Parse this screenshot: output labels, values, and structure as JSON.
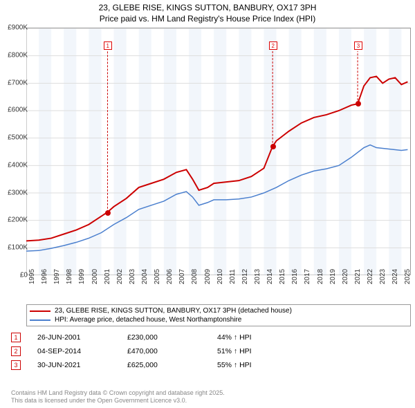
{
  "title_line1": "23, GLEBE RISE, KINGS SUTTON, BANBURY, OX17 3PH",
  "title_line2": "Price paid vs. HM Land Registry's House Price Index (HPI)",
  "chart": {
    "type": "line",
    "xlim": [
      1995,
      2025.7
    ],
    "ylim": [
      0,
      900
    ],
    "y_ticks": [
      0,
      100,
      200,
      300,
      400,
      500,
      600,
      700,
      800,
      900
    ],
    "y_tick_labels": [
      "£0",
      "£100K",
      "£200K",
      "£300K",
      "£400K",
      "£500K",
      "£600K",
      "£700K",
      "£800K",
      "£900K"
    ],
    "x_ticks": [
      1995,
      1996,
      1997,
      1998,
      1999,
      2000,
      2001,
      2002,
      2003,
      2004,
      2005,
      2006,
      2007,
      2008,
      2009,
      2010,
      2011,
      2012,
      2013,
      2014,
      2015,
      2016,
      2017,
      2018,
      2019,
      2020,
      2021,
      2022,
      2023,
      2024,
      2025
    ],
    "grid_color": "#dddddd",
    "band_color": "#f2f6fb",
    "background": "#ffffff",
    "series": [
      {
        "name": "23, GLEBE RISE, KINGS SUTTON, BANBURY, OX17 3PH (detached house)",
        "color": "#cc0000",
        "width": 2,
        "points": [
          [
            1995,
            125
          ],
          [
            1996,
            128
          ],
          [
            1997,
            135
          ],
          [
            1998,
            150
          ],
          [
            1999,
            165
          ],
          [
            2000,
            185
          ],
          [
            2001,
            215
          ],
          [
            2001.5,
            230
          ],
          [
            2002,
            250
          ],
          [
            2003,
            280
          ],
          [
            2004,
            320
          ],
          [
            2005,
            335
          ],
          [
            2006,
            350
          ],
          [
            2007,
            375
          ],
          [
            2007.8,
            385
          ],
          [
            2008.3,
            350
          ],
          [
            2008.8,
            310
          ],
          [
            2009.5,
            320
          ],
          [
            2010,
            335
          ],
          [
            2011,
            340
          ],
          [
            2012,
            345
          ],
          [
            2013,
            360
          ],
          [
            2014,
            390
          ],
          [
            2014.7,
            470
          ],
          [
            2015,
            490
          ],
          [
            2016,
            525
          ],
          [
            2017,
            555
          ],
          [
            2018,
            575
          ],
          [
            2019,
            585
          ],
          [
            2020,
            600
          ],
          [
            2021,
            620
          ],
          [
            2021.5,
            625
          ],
          [
            2022,
            690
          ],
          [
            2022.5,
            720
          ],
          [
            2023,
            725
          ],
          [
            2023.5,
            700
          ],
          [
            2024,
            715
          ],
          [
            2024.5,
            720
          ],
          [
            2025,
            695
          ],
          [
            2025.5,
            705
          ]
        ]
      },
      {
        "name": "HPI: Average price, detached house, West Northamptonshire",
        "color": "#4a7fce",
        "width": 1.5,
        "points": [
          [
            1995,
            88
          ],
          [
            1996,
            90
          ],
          [
            1997,
            98
          ],
          [
            1998,
            108
          ],
          [
            1999,
            120
          ],
          [
            2000,
            135
          ],
          [
            2001,
            155
          ],
          [
            2002,
            185
          ],
          [
            2003,
            210
          ],
          [
            2004,
            240
          ],
          [
            2005,
            255
          ],
          [
            2006,
            270
          ],
          [
            2007,
            295
          ],
          [
            2007.8,
            305
          ],
          [
            2008.3,
            285
          ],
          [
            2008.8,
            255
          ],
          [
            2009.5,
            265
          ],
          [
            2010,
            275
          ],
          [
            2011,
            275
          ],
          [
            2012,
            278
          ],
          [
            2013,
            285
          ],
          [
            2014,
            300
          ],
          [
            2015,
            320
          ],
          [
            2016,
            345
          ],
          [
            2017,
            365
          ],
          [
            2018,
            380
          ],
          [
            2019,
            388
          ],
          [
            2020,
            400
          ],
          [
            2021,
            430
          ],
          [
            2022,
            465
          ],
          [
            2022.5,
            475
          ],
          [
            2023,
            465
          ],
          [
            2024,
            460
          ],
          [
            2025,
            455
          ],
          [
            2025.5,
            458
          ]
        ]
      }
    ],
    "markers": [
      {
        "n": "1",
        "x": 2001.5,
        "y": 230,
        "label_y": 25,
        "color": "#cc0000"
      },
      {
        "n": "2",
        "x": 2014.7,
        "y": 470,
        "label_y": 25,
        "color": "#cc0000"
      },
      {
        "n": "3",
        "x": 2021.5,
        "y": 625,
        "label_y": 25,
        "color": "#cc0000"
      }
    ]
  },
  "legend": [
    {
      "color": "#cc0000",
      "label": "23, GLEBE RISE, KINGS SUTTON, BANBURY, OX17 3PH (detached house)"
    },
    {
      "color": "#4a7fce",
      "label": "HPI: Average price, detached house, West Northamptonshire"
    }
  ],
  "transactions": [
    {
      "n": "1",
      "date": "26-JUN-2001",
      "price": "£230,000",
      "pct": "44% ↑ HPI",
      "color": "#cc0000"
    },
    {
      "n": "2",
      "date": "04-SEP-2014",
      "price": "£470,000",
      "pct": "51% ↑ HPI",
      "color": "#cc0000"
    },
    {
      "n": "3",
      "date": "30-JUN-2021",
      "price": "£625,000",
      "pct": "55% ↑ HPI",
      "color": "#cc0000"
    }
  ],
  "footer_line1": "Contains HM Land Registry data © Crown copyright and database right 2025.",
  "footer_line2": "This data is licensed under the Open Government Licence v3.0."
}
